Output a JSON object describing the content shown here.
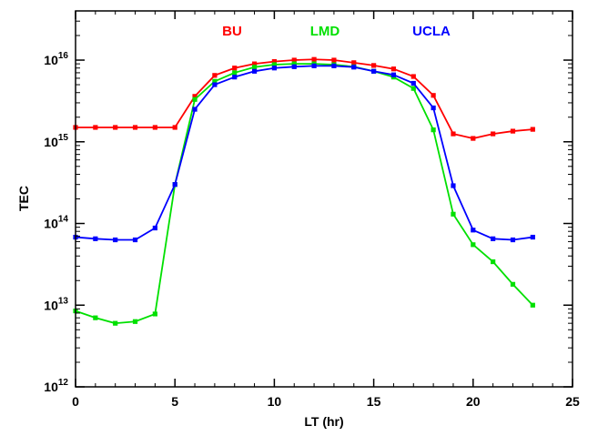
{
  "chart_data": {
    "type": "line",
    "title": "",
    "xlabel": "LT (hr)",
    "ylabel": "TEC",
    "xlim": [
      0,
      25
    ],
    "ylim": [
      1000000000000.0,
      4e+16
    ],
    "yscale": "log",
    "grid": false,
    "legend_placement": "top-center",
    "xticks": [
      0,
      5,
      10,
      15,
      20,
      25
    ],
    "xtick_labels": [
      "0",
      "5",
      "10",
      "15",
      "20",
      "25"
    ],
    "yticks": [
      {
        "base": "10",
        "exp": "12",
        "value": 1000000000000.0
      },
      {
        "base": "10",
        "exp": "13",
        "value": 10000000000000.0
      },
      {
        "base": "10",
        "exp": "14",
        "value": 100000000000000.0
      },
      {
        "base": "10",
        "exp": "15",
        "value": 1000000000000000.0
      },
      {
        "base": "10",
        "exp": "16",
        "value": 1e+16
      }
    ],
    "x": [
      0,
      1,
      2,
      3,
      4,
      5,
      6,
      7,
      8,
      9,
      10,
      11,
      12,
      13,
      14,
      15,
      16,
      17,
      18,
      19,
      20,
      21,
      22,
      23
    ],
    "series": [
      {
        "name": "BU",
        "color": "#ff0000",
        "values": [
          1500000000000000.0,
          1500000000000000.0,
          1500000000000000.0,
          1500000000000000.0,
          1500000000000000.0,
          1500000000000000.0,
          3600000000000000.0,
          6500000000000000.0,
          8000000000000000.0,
          9000000000000000.0,
          9600000000000000.0,
          1e+16,
          1.02e+16,
          1e+16,
          9300000000000000.0,
          8600000000000000.0,
          7800000000000000.0,
          6300000000000000.0,
          3700000000000000.0,
          1250000000000000.0,
          1100000000000000.0,
          1250000000000000.0,
          1350000000000000.0,
          1420000000000000.0
        ]
      },
      {
        "name": "LMD",
        "color": "#00e000",
        "values": [
          8500000000000.0,
          7000000000000.0,
          6000000000000.0,
          6300000000000.0,
          7800000000000.0,
          300000000000000.0,
          3300000000000000.0,
          5500000000000000.0,
          7000000000000000.0,
          8200000000000000.0,
          8800000000000000.0,
          9000000000000000.0,
          9000000000000000.0,
          8800000000000000.0,
          8300000000000000.0,
          7300000000000000.0,
          6200000000000000.0,
          4500000000000000.0,
          1400000000000000.0,
          130000000000000.0,
          55000000000000.0,
          34000000000000.0,
          18000000000000.0,
          10000000000000.0
        ]
      },
      {
        "name": "UCLA",
        "color": "#0000ff",
        "values": [
          68000000000000.0,
          65000000000000.0,
          63000000000000.0,
          63000000000000.0,
          88000000000000.0,
          300000000000000.0,
          2500000000000000.0,
          5000000000000000.0,
          6200000000000000.0,
          7300000000000000.0,
          8000000000000000.0,
          8300000000000000.0,
          8500000000000000.0,
          8500000000000000.0,
          8200000000000000.0,
          7300000000000000.0,
          6600000000000000.0,
          5200000000000000.0,
          2600000000000000.0,
          290000000000000.0,
          83000000000000.0,
          65000000000000.0,
          63000000000000.0,
          68000000000000.0
        ]
      }
    ]
  }
}
